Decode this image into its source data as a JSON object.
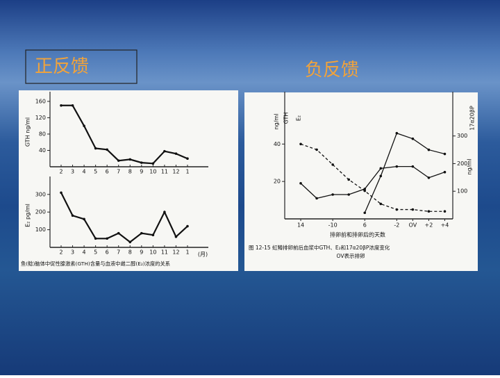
{
  "slide": {
    "title_left": "正反馈",
    "title_right": "负反馈"
  },
  "chart_data": [
    {
      "type": "line",
      "y_label": "GTH ng/ml",
      "x_label": "(月)",
      "categories": [
        "2",
        "3",
        "4",
        "5",
        "6",
        "7",
        "8",
        "9",
        "10",
        "11",
        "12",
        "1"
      ],
      "series": [
        {
          "name": "GTH",
          "color": "#111111",
          "values": [
            150,
            150,
            100,
            45,
            42,
            15,
            18,
            10,
            8,
            38,
            32,
            20
          ]
        }
      ],
      "ylim": [
        0,
        170
      ],
      "yticks": [
        40,
        80,
        120,
        160
      ]
    },
    {
      "type": "line",
      "y_label": "E₂ pg/ml",
      "caption": "鱼(鲶)脑体中促性腺激素(GTH)含量与血液中雌二醇(E₂)浓度的关系",
      "categories": [
        "2",
        "3",
        "4",
        "5",
        "6",
        "7",
        "8",
        "9",
        "10",
        "11",
        "12",
        "1"
      ],
      "series": [
        {
          "name": "E₂",
          "color": "#111111",
          "values": [
            310,
            180,
            160,
            50,
            50,
            80,
            30,
            80,
            70,
            200,
            60,
            120
          ]
        }
      ],
      "ylim": [
        0,
        370
      ],
      "yticks": [
        100,
        200,
        300
      ]
    },
    {
      "type": "line",
      "x_label": "排卵前和排卵后的天数",
      "caption": "图 12-15   虹鳟排卵前后血浆中GTH、E₂和17α20βP浓度变化",
      "caption2": "OV表示排卵",
      "y_label": "ng/ml",
      "y2_label": "ng/ml",
      "xlim": [
        -16,
        5
      ],
      "xticks": [
        {
          "value": -14,
          "label": "14"
        },
        -10,
        {
          "value": -6,
          "label": "6"
        },
        -2,
        {
          "value": 0,
          "label": "OV"
        },
        {
          "value": 2,
          "label": "+2"
        },
        {
          "value": 4,
          "label": "+4"
        }
      ],
      "ylim": [
        0,
        65
      ],
      "yticks": [
        20,
        40
      ],
      "y2lim": [
        0,
        440
      ],
      "y2ticks": [
        100,
        200,
        300
      ],
      "series": [
        {
          "name": "E₂",
          "color": "#111111",
          "style": "dashed",
          "x": [
            -14,
            -12,
            -10,
            -8,
            -6,
            -4,
            -2,
            0,
            2,
            4
          ],
          "values": [
            40,
            37,
            29,
            21,
            15,
            8,
            5,
            5,
            4,
            4
          ]
        },
        {
          "name": "GTH",
          "color": "#111111",
          "style": "solid",
          "x": [
            -14,
            -12,
            -10,
            -8,
            -6,
            -4,
            -2,
            0,
            2,
            4
          ],
          "values": [
            19,
            11,
            13,
            13,
            16,
            27,
            28,
            28,
            22,
            25
          ]
        },
        {
          "name": "17α20βP",
          "color": "#111111",
          "style": "solid",
          "axis": "y2",
          "x": [
            -6,
            -4,
            -2,
            0,
            2,
            4
          ],
          "values": [
            22,
            155,
            310,
            290,
            250,
            235
          ]
        }
      ]
    }
  ]
}
